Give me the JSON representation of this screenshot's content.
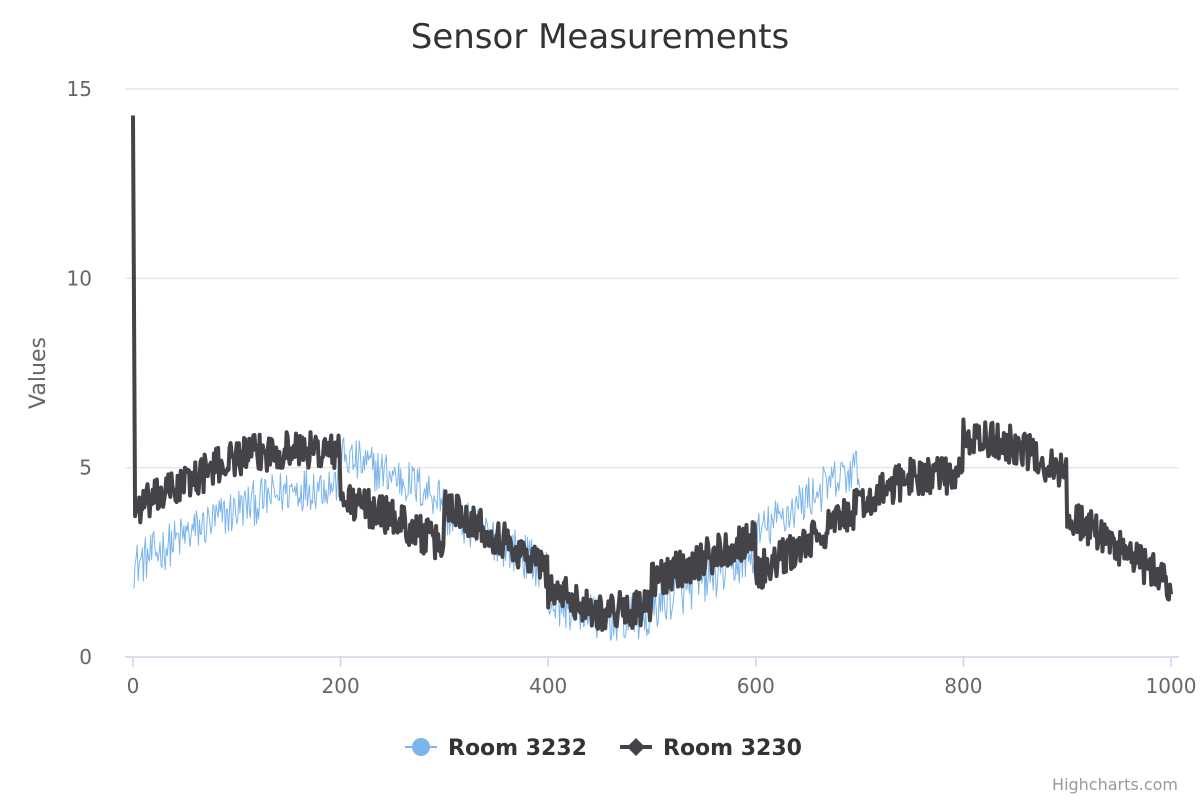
{
  "chart_data": {
    "type": "line",
    "title": "Sensor Measurements",
    "xlabel": "",
    "ylabel": "Values",
    "xlim": [
      0,
      1000
    ],
    "ylim": [
      0,
      15
    ],
    "x_ticks": [
      0,
      200,
      400,
      600,
      800,
      1000
    ],
    "y_ticks": [
      0,
      5,
      10,
      15
    ],
    "grid": "horizontal",
    "legend_position": "bottom-center",
    "credits": "Highcharts.com",
    "series": [
      {
        "name": "Room 3232",
        "color": "#7cb5ec",
        "marker": "circle",
        "line_width": "thin",
        "x_range": [
          0,
          700
        ],
        "noise_amplitude": 0.6,
        "trend": [
          [
            0,
            2.4
          ],
          [
            50,
            3.2
          ],
          [
            100,
            3.9
          ],
          [
            150,
            4.4
          ],
          [
            199,
            4.6
          ],
          [
            200,
            5.3
          ],
          [
            250,
            4.8
          ],
          [
            299,
            4.2
          ],
          [
            300,
            3.8
          ],
          [
            350,
            3.1
          ],
          [
            399,
            2.3
          ],
          [
            400,
            1.5
          ],
          [
            450,
            1.0
          ],
          [
            499,
            1.0
          ],
          [
            500,
            1.3
          ],
          [
            550,
            2.0
          ],
          [
            599,
            2.7
          ],
          [
            600,
            3.2
          ],
          [
            650,
            4.2
          ],
          [
            700,
            5.0
          ]
        ]
      },
      {
        "name": "Room 3230",
        "color": "#434348",
        "marker": "diamond",
        "line_width": "thick",
        "x_range": [
          0,
          1000
        ],
        "noise_amplitude": 0.5,
        "trend": [
          [
            0,
            14.3
          ],
          [
            2,
            3.9
          ],
          [
            50,
            4.6
          ],
          [
            100,
            5.3
          ],
          [
            150,
            5.5
          ],
          [
            199,
            5.4
          ],
          [
            200,
            4.2
          ],
          [
            250,
            3.7
          ],
          [
            299,
            2.9
          ],
          [
            300,
            4.1
          ],
          [
            350,
            3.2
          ],
          [
            399,
            2.3
          ],
          [
            400,
            1.8
          ],
          [
            450,
            1.2
          ],
          [
            499,
            1.3
          ],
          [
            500,
            2.0
          ],
          [
            550,
            2.6
          ],
          [
            599,
            3.2
          ],
          [
            600,
            2.2
          ],
          [
            650,
            3.0
          ],
          [
            700,
            4.0
          ],
          [
            750,
            4.8
          ],
          [
            799,
            4.8
          ],
          [
            800,
            5.8
          ],
          [
            850,
            5.6
          ],
          [
            899,
            4.8
          ],
          [
            900,
            3.8
          ],
          [
            950,
            2.9
          ],
          [
            1000,
            1.9
          ]
        ]
      }
    ]
  }
}
